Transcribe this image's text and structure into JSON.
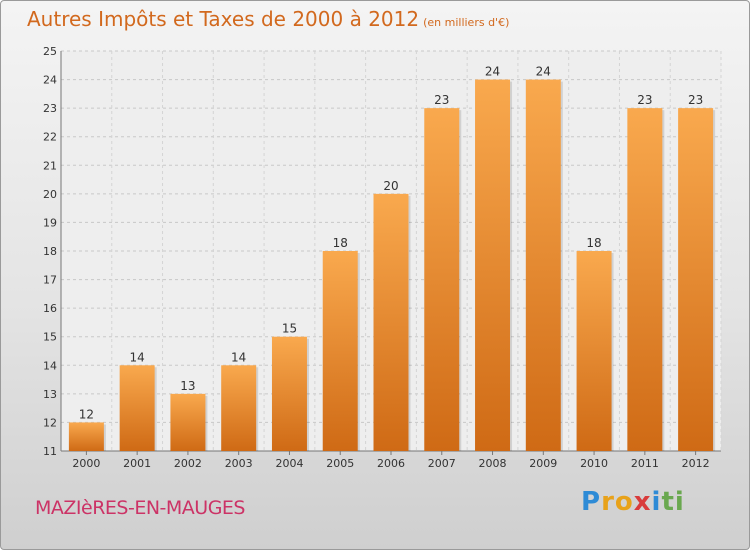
{
  "title": "Autres Impôts et Taxes de 2000 à 2012",
  "subtitle": "(en milliers d'€)",
  "commune": "MAZIèRES-EN-MAUGES",
  "logo": {
    "letters": [
      "P",
      "r",
      "o",
      "x",
      "i",
      "t",
      "i"
    ],
    "colors": [
      "#2e8bd6",
      "#e8a21a",
      "#e8a21a",
      "#d93b3b",
      "#2e8bd6",
      "#6aa84f",
      "#6aa84f"
    ]
  },
  "colors": {
    "bar_top": "#f9a94e",
    "bar_bottom": "#cf6a15",
    "title": "#d2691e",
    "commune": "#cc3366"
  },
  "chart_data": {
    "type": "bar",
    "title": "Autres Impôts et Taxes de 2000 à 2012",
    "subtitle": "(en milliers d'€)",
    "categories": [
      "2000",
      "2001",
      "2002",
      "2003",
      "2004",
      "2005",
      "2006",
      "2007",
      "2008",
      "2009",
      "2010",
      "2011",
      "2012"
    ],
    "values": [
      12,
      14,
      13,
      14,
      15,
      18,
      20,
      23,
      24,
      24,
      18,
      23,
      23
    ],
    "ylim": [
      11,
      25
    ],
    "yticks": [
      11,
      12,
      13,
      14,
      15,
      16,
      17,
      18,
      19,
      20,
      21,
      22,
      23,
      24,
      25
    ],
    "grid": true,
    "xlabel": "",
    "ylabel": ""
  }
}
